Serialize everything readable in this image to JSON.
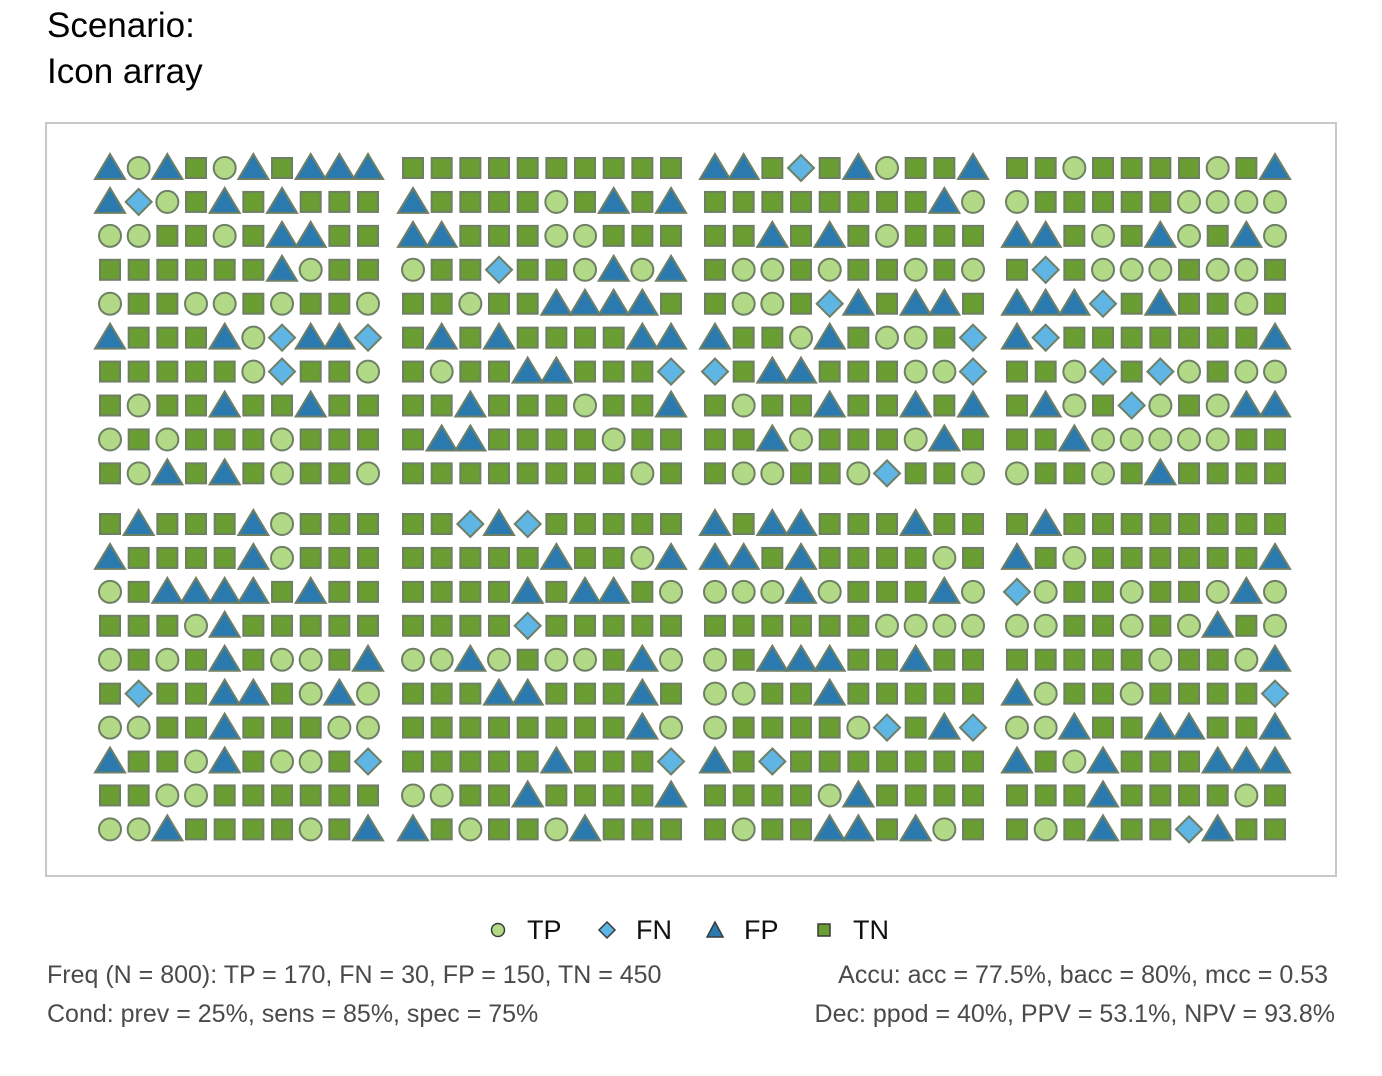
{
  "title_line1": "Scenario:",
  "title_line2": "Icon array",
  "colors": {
    "TP": "#b1d986",
    "FN": "#5fb6e5",
    "FP": "#2a7ab0",
    "TN": "#6a9d32",
    "stroke": "#6f7f66",
    "frame": "#c8c8c8"
  },
  "chart_data": {
    "type": "icon_array",
    "N": 800,
    "blocks_grid": "2 rows x 4 columns of 10x10 icons",
    "legend": [
      {
        "key": "TP",
        "label": "TP",
        "shape": "circle"
      },
      {
        "key": "FN",
        "label": "FN",
        "shape": "diamond"
      },
      {
        "key": "FP",
        "label": "FP",
        "shape": "triangle"
      },
      {
        "key": "TN",
        "label": "TN",
        "shape": "square"
      }
    ],
    "counts": {
      "TP": 170,
      "FN": 30,
      "FP": 150,
      "TN": 450
    },
    "block_rows": [
      [
        "ACAQCAQAAA,ADCQAQAQQQ,CCQQCQAAQQ,QQQQQQACQQ,CQQCCQCQQC,AQQQACDAAD,QQQQQCDQQC,QCQQAQQAQQ,CQCQQQCQQQ,QCAQAQCQQC",
        "QQQQQQQQQQ,AQQQQCQAQA,AAQQQCCQQQ,CQQDQQCACA,QQCQQAAAAQ,QAQAQQQQAA,QCQQAAQQQD,QQAQQQCQQA,QAAQQQQCQQ,QQQQQQQQCQ",
        "AAQDQACQQA,QQQQQQQQAC,QQAQAQCQQQ,QCCQCQQCQC,QCCQDAQAAQ,AQQCAQCCQD,DQAAQQQCCD,QCQQAQQAQA,QQACQQQCAQ,QCCQQCDQQC",
        "QQCQQQQCQA,CQQQQQCCCC,AAQCQACQAC,QDQCCCQCCQ,AAADQAQQCQ,ADQQQQQQQA,QQCDQDCQCC,QACQDCQCAA,QQACCCCCQQ,CQQCQAQQQQ"
      ],
      [
        "QAQQQACQQQ,AQQQQACQQQ,CQAAAAQAQQ,QQQCAQQQQQ,CQCQAQCCQA,QDQQAAQCAC,CCQQAQQQCC,AQQCAQCCQD,QQCCQQQQQQ,CCAQQQQCQA",
        "QQDADQQQQQ,QQQQQAQQCA,QQQQAQAAQC,QQQQDQQQQQ,CCACQCCQAC,QQQAAQQQAQ,QQQQQQQQAC,QQQQQAQQQD,CCQQAQQQQA,AQCQQCAQQQ",
        "AQAAQQQAQQ,AAQAQQQQCQ,CCCACQQQAC,QQQQQQCCCC,CQAAAQQAQQ,CCQQAQQQQQ,CQQQQCDQAD,AQDQQQQQQQ,QQQQCAQQQQ,QCQQAAQACQ",
        "QAQQQQQQQQ,AQCQQQQQQA,DCQQCQQCAC,CCQQCQCAQC,QQQQQCQQCA,ACQQCQQQQD,CCAQQAAQQA,AQCAQQQAAA,QQQAQQQQCQ,QCQAQQDAQQ"
      ]
    ],
    "block_row_labels": [],
    "stats": {
      "freq": "Freq (N = 800):  TP = 170, FN = 30, FP = 150, TN = 450",
      "accu": "Accu:  acc = 77.5%, bacc = 80%, mcc = 0.53",
      "cond": "Cond:  prev = 25%, sens = 85%, spec = 75%",
      "dec": "Dec:  ppod = 40%, PPV = 53.1%, NPV = 93.8%"
    }
  }
}
